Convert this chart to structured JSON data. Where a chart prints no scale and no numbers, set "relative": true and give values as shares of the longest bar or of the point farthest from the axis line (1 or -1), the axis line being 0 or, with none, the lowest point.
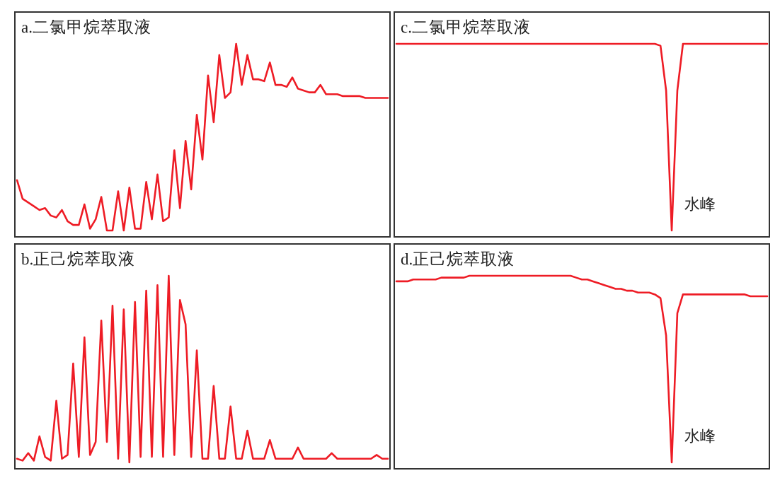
{
  "chart_data": [
    {
      "type": "line",
      "title": "a.二氯甲烷萃取液",
      "relative": true,
      "categories": [
        null,
        null,
        null,
        null,
        null,
        null,
        null,
        null,
        null,
        null,
        null,
        null,
        null,
        null,
        null,
        null,
        null,
        null,
        null,
        null,
        null,
        null,
        null,
        null,
        null,
        null,
        null,
        null,
        null,
        null,
        null,
        null,
        null,
        null,
        null,
        null,
        null,
        null,
        null,
        null,
        null,
        null,
        null,
        null,
        null,
        null,
        null,
        null,
        null,
        null,
        null,
        null,
        null,
        null,
        null,
        null,
        null,
        null,
        null,
        null,
        null,
        null,
        null,
        null,
        null,
        null,
        null
      ],
      "series": [
        {
          "color": "#ee1c25",
          "values": [
            0.27,
            0.17,
            0.15,
            0.13,
            0.11,
            0.12,
            0.08,
            0.07,
            0.11,
            0.05,
            0.03,
            0.03,
            0.14,
            0.01,
            0.06,
            0.18,
            0,
            0,
            0.21,
            0,
            0.23,
            0.01,
            0.01,
            0.26,
            0.06,
            0.3,
            0.05,
            0.07,
            0.43,
            0.12,
            0.48,
            0.22,
            0.62,
            0.38,
            0.83,
            0.58,
            0.94,
            0.71,
            0.74,
            1,
            0.78,
            0.94,
            0.81,
            0.81,
            0.8,
            0.9,
            0.78,
            0.78,
            0.77,
            0.82,
            0.76,
            0.75,
            0.74,
            0.74,
            0.78,
            0.73,
            0.73,
            0.73,
            0.72,
            0.72,
            0.72,
            0.72,
            0.71,
            0.71,
            0.71,
            0.71,
            0.71
          ]
        }
      ]
    },
    {
      "type": "line",
      "title": "c.二氯甲烷萃取液",
      "relative": true,
      "categories": [
        null,
        null,
        null,
        null,
        null,
        null,
        null,
        null,
        null,
        null,
        null,
        null,
        null,
        null,
        null,
        null,
        null,
        null,
        null,
        null,
        null,
        null,
        null,
        null,
        null,
        null,
        null,
        null,
        null,
        null,
        null,
        null,
        null,
        null,
        null,
        null,
        null,
        null,
        null,
        null,
        null,
        null,
        null,
        null,
        null,
        null,
        null,
        null,
        null,
        null,
        null,
        null,
        null,
        null,
        null,
        null,
        null,
        null,
        null,
        null,
        null,
        null,
        null,
        null,
        null,
        null,
        null
      ],
      "series": [
        {
          "color": "#ee1c25",
          "values": [
            1,
            1,
            1,
            1,
            1,
            1,
            1,
            1,
            1,
            1,
            1,
            1,
            1,
            1,
            1,
            1,
            1,
            1,
            1,
            1,
            1,
            1,
            1,
            1,
            1,
            1,
            1,
            1,
            1,
            1,
            1,
            1,
            1,
            1,
            1,
            1,
            1,
            1,
            1,
            1,
            1,
            1,
            1,
            1,
            1,
            1,
            1,
            0.99,
            0.75,
            0,
            0.75,
            1,
            1,
            1,
            1,
            1,
            1,
            1,
            1,
            1,
            1,
            1,
            1,
            1,
            1,
            1,
            1
          ]
        }
      ],
      "annotations": [
        "水峰"
      ]
    },
    {
      "type": "line",
      "title": "b.正己烷萃取液",
      "relative": true,
      "categories": [
        null,
        null,
        null,
        null,
        null,
        null,
        null,
        null,
        null,
        null,
        null,
        null,
        null,
        null,
        null,
        null,
        null,
        null,
        null,
        null,
        null,
        null,
        null,
        null,
        null,
        null,
        null,
        null,
        null,
        null,
        null,
        null,
        null,
        null,
        null,
        null,
        null,
        null,
        null,
        null,
        null,
        null,
        null,
        null,
        null,
        null,
        null,
        null,
        null,
        null,
        null,
        null,
        null,
        null,
        null,
        null,
        null,
        null,
        null,
        null,
        null,
        null,
        null,
        null,
        null,
        null,
        null
      ],
      "series": [
        {
          "color": "#ee1c25",
          "values": [
            0.02,
            0.01,
            0.05,
            0.01,
            0.14,
            0.03,
            0.01,
            0.33,
            0.02,
            0.04,
            0.53,
            0.03,
            0.67,
            0.04,
            0.11,
            0.76,
            0.11,
            0.84,
            0.02,
            0.82,
            0,
            0.86,
            0.03,
            0.92,
            0.03,
            0.95,
            0.03,
            1,
            0.04,
            0.87,
            0.74,
            0.03,
            0.6,
            0.02,
            0.02,
            0.41,
            0.02,
            0.02,
            0.3,
            0.02,
            0.02,
            0.17,
            0.02,
            0.02,
            0.02,
            0.12,
            0.02,
            0.02,
            0.02,
            0.02,
            0.08,
            0.02,
            0.02,
            0.02,
            0.02,
            0.02,
            0.05,
            0.02,
            0.02,
            0.02,
            0.02,
            0.02,
            0.02,
            0.02,
            0.04,
            0.02,
            0.02
          ]
        }
      ]
    },
    {
      "type": "line",
      "title": "d.正己烷萃取液",
      "relative": true,
      "categories": [
        null,
        null,
        null,
        null,
        null,
        null,
        null,
        null,
        null,
        null,
        null,
        null,
        null,
        null,
        null,
        null,
        null,
        null,
        null,
        null,
        null,
        null,
        null,
        null,
        null,
        null,
        null,
        null,
        null,
        null,
        null,
        null,
        null,
        null,
        null,
        null,
        null,
        null,
        null,
        null,
        null,
        null,
        null,
        null,
        null,
        null,
        null,
        null,
        null,
        null,
        null,
        null,
        null,
        null,
        null,
        null,
        null,
        null,
        null,
        null,
        null,
        null,
        null,
        null,
        null,
        null,
        null
      ],
      "series": [
        {
          "color": "#ee1c25",
          "values": [
            0.97,
            0.97,
            0.97,
            0.98,
            0.98,
            0.98,
            0.98,
            0.98,
            0.99,
            0.99,
            0.99,
            0.99,
            0.99,
            1,
            1,
            1,
            1,
            1,
            1,
            1,
            1,
            1,
            1,
            1,
            1,
            1,
            1,
            1,
            1,
            1,
            1,
            1,
            0.99,
            0.98,
            0.98,
            0.97,
            0.96,
            0.95,
            0.94,
            0.93,
            0.93,
            0.92,
            0.92,
            0.91,
            0.91,
            0.91,
            0.9,
            0.88,
            0.68,
            0,
            0.8,
            0.9,
            0.9,
            0.9,
            0.9,
            0.9,
            0.9,
            0.9,
            0.9,
            0.9,
            0.9,
            0.9,
            0.9,
            0.89,
            0.89,
            0.89,
            0.89
          ]
        }
      ],
      "annotations": [
        "水峰"
      ]
    }
  ]
}
